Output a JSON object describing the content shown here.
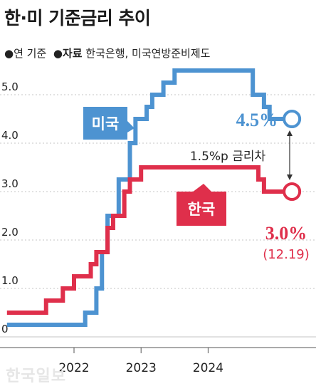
{
  "header": {
    "title": "한·미 기준금리 추이",
    "basis_label": "●연 기준",
    "source_prefix": "●자료",
    "source_text": "한국은행, 미국연방준비제도"
  },
  "colors": {
    "us": "#4d93d1",
    "korea": "#df2f4b",
    "text": "#222222",
    "grid": "#bbbbbb"
  },
  "chart_data": {
    "type": "line",
    "step": true,
    "title": "한·미 기준금리 추이",
    "xlabel": "",
    "ylabel": "",
    "x_ticks": [
      "2022",
      "2023",
      "2024"
    ],
    "y_ticks": [
      "0",
      "1.0",
      "2.0",
      "3.0",
      "4.0",
      "5.0"
    ],
    "ylim": [
      0,
      5.5
    ],
    "series": [
      {
        "key": "us",
        "name": "미국",
        "color": "#4d93d1",
        "points": [
          [
            "2021-01",
            0.25
          ],
          [
            "2022-03",
            0.5
          ],
          [
            "2022-05",
            1.0
          ],
          [
            "2022-06",
            1.75
          ],
          [
            "2022-07",
            2.5
          ],
          [
            "2022-09",
            3.25
          ],
          [
            "2022-11",
            4.0
          ],
          [
            "2022-12",
            4.5
          ],
          [
            "2023-02",
            4.75
          ],
          [
            "2023-03",
            5.0
          ],
          [
            "2023-05",
            5.25
          ],
          [
            "2023-07",
            5.5
          ],
          [
            "2024-09",
            5.0
          ],
          [
            "2024-11",
            4.75
          ],
          [
            "2024-12",
            4.5
          ],
          [
            "2025-04",
            4.5
          ]
        ],
        "end_label": "4.5%"
      },
      {
        "key": "korea",
        "name": "한국",
        "color": "#df2f4b",
        "points": [
          [
            "2021-01",
            0.5
          ],
          [
            "2021-08",
            0.75
          ],
          [
            "2021-11",
            1.0
          ],
          [
            "2022-01",
            1.25
          ],
          [
            "2022-04",
            1.5
          ],
          [
            "2022-05",
            1.75
          ],
          [
            "2022-07",
            2.25
          ],
          [
            "2022-08",
            2.5
          ],
          [
            "2022-10",
            3.0
          ],
          [
            "2022-11",
            3.25
          ],
          [
            "2023-01",
            3.5
          ],
          [
            "2024-10",
            3.25
          ],
          [
            "2024-11",
            3.0
          ],
          [
            "2025-04",
            3.0
          ]
        ],
        "end_label": "3.0%",
        "end_date": "(12.19)"
      }
    ],
    "annotation": "1.5%p 금리차"
  }
}
